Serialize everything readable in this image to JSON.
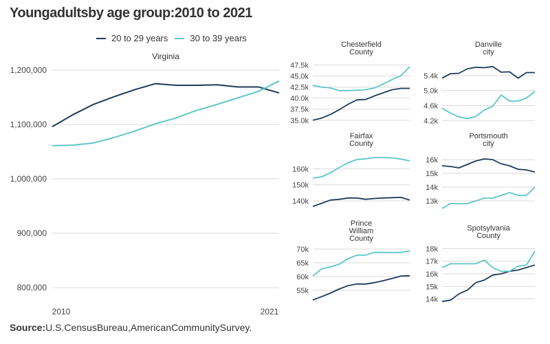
{
  "title": "Youngadultsby age group:2010 to 2021",
  "source_label": "Source:",
  "source_text": "U.S.CensusBureau,AmericanCommunitySurvey.",
  "colors": {
    "series_20_29": "#1f3a5a",
    "series_30_39": "#5cc6c6",
    "grid": "#d9d9d9"
  },
  "legend": [
    {
      "label": "20 to 29 years",
      "color": "#1f3a5a"
    },
    {
      "label": "30 to 39 years",
      "color": "#5cc6c6"
    }
  ],
  "chart_data": [
    {
      "type": "line",
      "title": "Virginia",
      "x": [
        2010,
        2011,
        2012,
        2013,
        2014,
        2015,
        2016,
        2017,
        2018,
        2019,
        2020,
        2021
      ],
      "x_tick_labels": [
        "2010",
        "2021"
      ],
      "y_ticks": [
        800000,
        900000,
        1000000,
        1100000,
        1200000
      ],
      "y_tick_labels": [
        "800,000",
        "900,000",
        "1,000,000",
        "1,100,000",
        "1,200,000"
      ],
      "ylim": [
        790000,
        1215000
      ],
      "series": [
        {
          "name": "20 to 29 years",
          "values": [
            1096000,
            1118000,
            1137000,
            1151000,
            1164000,
            1175000,
            1172000,
            1172000,
            1173000,
            1169000,
            1169000,
            1158000
          ]
        },
        {
          "name": "30 to 39 years",
          "values": [
            1061000,
            1062000,
            1066000,
            1076000,
            1088000,
            1101000,
            1112000,
            1126000,
            1137000,
            1149000,
            1161000,
            1180000
          ]
        }
      ]
    },
    {
      "type": "line",
      "title": "Chesterfield\nCounty",
      "x": [
        2010,
        2011,
        2012,
        2013,
        2014,
        2015,
        2016,
        2017,
        2018,
        2019,
        2020,
        2021
      ],
      "y_ticks": [
        35000,
        37500,
        40000,
        42500,
        45000,
        47500
      ],
      "y_tick_labels": [
        "35.0k",
        "37.5k",
        "40.0k",
        "42.5k",
        "45.0k",
        "47.5k"
      ],
      "ylim": [
        34500,
        48500
      ],
      "series": [
        {
          "name": "20 to 29 years",
          "values": [
            35000,
            35500,
            36300,
            37400,
            38600,
            39600,
            39700,
            40500,
            41200,
            41900,
            42200,
            42200
          ]
        },
        {
          "name": "30 to 39 years",
          "values": [
            42900,
            42500,
            42300,
            41700,
            41700,
            41800,
            41900,
            42300,
            43200,
            44200,
            45100,
            47100
          ]
        }
      ]
    },
    {
      "type": "line",
      "title": "Danville\ncity",
      "x": [
        2010,
        2011,
        2012,
        2013,
        2014,
        2015,
        2016,
        2017,
        2018,
        2019,
        2020,
        2021
      ],
      "y_ticks": [
        4200,
        4600,
        5000,
        5400
      ],
      "y_tick_labels": [
        "4.2k",
        "4.6k",
        "5.0k",
        "5.4k"
      ],
      "ylim": [
        4150,
        5800
      ],
      "series": [
        {
          "name": "20 to 29 years",
          "values": [
            5330,
            5450,
            5460,
            5580,
            5620,
            5610,
            5640,
            5490,
            5500,
            5330,
            5480,
            5480
          ]
        },
        {
          "name": "30 to 39 years",
          "values": [
            4530,
            4400,
            4300,
            4250,
            4310,
            4480,
            4580,
            4880,
            4720,
            4720,
            4800,
            4980
          ]
        }
      ]
    },
    {
      "type": "line",
      "title": "Fairfax\nCounty",
      "x": [
        2010,
        2011,
        2012,
        2013,
        2014,
        2015,
        2016,
        2017,
        2018,
        2019,
        2020,
        2021
      ],
      "y_ticks": [
        140000,
        150000,
        160000
      ],
      "y_tick_labels": [
        "140k",
        "150k",
        "160k"
      ],
      "ylim": [
        134000,
        170000
      ],
      "series": [
        {
          "name": "20 to 29 years",
          "values": [
            136500,
            138500,
            140500,
            141000,
            141800,
            141800,
            141000,
            141500,
            141800,
            142000,
            142200,
            140500
          ]
        },
        {
          "name": "30 to 39 years",
          "values": [
            154200,
            155000,
            157500,
            160800,
            163800,
            165800,
            166200,
            167000,
            167000,
            166800,
            166000,
            165000
          ]
        }
      ]
    },
    {
      "type": "line",
      "title": "Portsmouth\ncity",
      "x": [
        2010,
        2011,
        2012,
        2013,
        2014,
        2015,
        2016,
        2017,
        2018,
        2019,
        2020,
        2021
      ],
      "y_ticks": [
        13000,
        14000,
        15000,
        16000
      ],
      "y_tick_labels": [
        "13k",
        "14k",
        "15k",
        "16k"
      ],
      "ylim": [
        12300,
        16500
      ],
      "series": [
        {
          "name": "20 to 29 years",
          "values": [
            15550,
            15500,
            15400,
            15650,
            15900,
            16050,
            16000,
            15700,
            15550,
            15300,
            15250,
            15100
          ]
        },
        {
          "name": "30 to 39 years",
          "values": [
            12450,
            12800,
            12800,
            12800,
            13000,
            13200,
            13200,
            13400,
            13600,
            13400,
            13400,
            14000
          ]
        }
      ]
    },
    {
      "type": "line",
      "title": "Prince\nWilliam\nCounty",
      "x": [
        2010,
        2011,
        2012,
        2013,
        2014,
        2015,
        2016,
        2017,
        2018,
        2019,
        2020,
        2021
      ],
      "y_ticks": [
        55000,
        60000,
        65000,
        70000
      ],
      "y_tick_labels": [
        "55k",
        "60k",
        "65k",
        "70k"
      ],
      "ylim": [
        50500,
        71500
      ],
      "series": [
        {
          "name": "20 to 29 years",
          "values": [
            51500,
            52700,
            54000,
            55500,
            56700,
            57300,
            57300,
            57800,
            58500,
            59300,
            60200,
            60300
          ]
        },
        {
          "name": "30 to 39 years",
          "values": [
            60200,
            62800,
            63500,
            64500,
            66500,
            67800,
            67800,
            68800,
            68800,
            68700,
            68800,
            69300
          ]
        }
      ]
    },
    {
      "type": "line",
      "title": "Spotsylvania\nCounty",
      "x": [
        2010,
        2011,
        2012,
        2013,
        2014,
        2015,
        2016,
        2017,
        2018,
        2019,
        2020,
        2021
      ],
      "y_ticks": [
        14000,
        15000,
        16000,
        17000,
        18000
      ],
      "y_tick_labels": [
        "14k",
        "15k",
        "16k",
        "17k",
        "18k"
      ],
      "ylim": [
        13700,
        18300
      ],
      "series": [
        {
          "name": "20 to 29 years",
          "values": [
            13800,
            13900,
            14400,
            14700,
            15300,
            15500,
            15900,
            16000,
            16200,
            16300,
            16500,
            16700
          ]
        },
        {
          "name": "30 to 39 years",
          "values": [
            16500,
            16800,
            16800,
            16800,
            16800,
            17100,
            16500,
            16200,
            16200,
            16600,
            16700,
            17800
          ]
        }
      ]
    }
  ]
}
